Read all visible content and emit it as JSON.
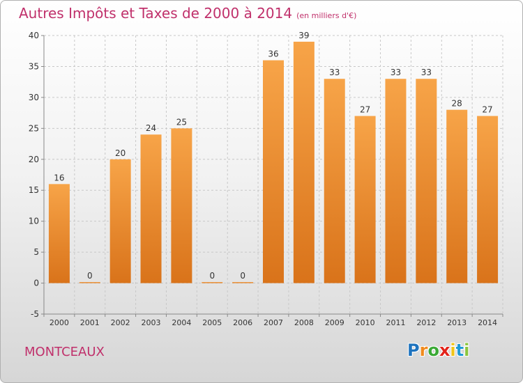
{
  "title": "Autres Impôts et Taxes de 2000 à 2014",
  "title_unit": "(en milliers d'€)",
  "commune": "MONTCEAUX",
  "logo": {
    "letters": [
      "P",
      "r",
      "o",
      "x",
      "i",
      "t",
      "i"
    ],
    "colors": [
      "#1e73be",
      "#f08a1d",
      "#3aa935",
      "#e2231a",
      "#f0c419",
      "#1e9ad6",
      "#8bc53f"
    ]
  },
  "colors": {
    "bar": "#f0902a",
    "title": "#c0306b",
    "text": "#333333"
  },
  "chart_data": {
    "type": "bar",
    "categories": [
      "2000",
      "2001",
      "2002",
      "2003",
      "2004",
      "2005",
      "2006",
      "2007",
      "2008",
      "2009",
      "2010",
      "2011",
      "2012",
      "2013",
      "2014"
    ],
    "values": [
      16,
      0,
      20,
      24,
      25,
      0,
      0,
      36,
      39,
      33,
      27,
      33,
      33,
      28,
      27
    ],
    "data_labels": [
      "16",
      "0",
      "20",
      "24",
      "25",
      "0",
      "0",
      "36",
      "39",
      "33",
      "27",
      "33",
      "33",
      "28",
      "27"
    ],
    "ylim": [
      -5,
      40
    ],
    "yticks": [
      "-5",
      "0",
      "5",
      "10",
      "15",
      "20",
      "25",
      "30",
      "35",
      "40"
    ],
    "grid": true
  }
}
